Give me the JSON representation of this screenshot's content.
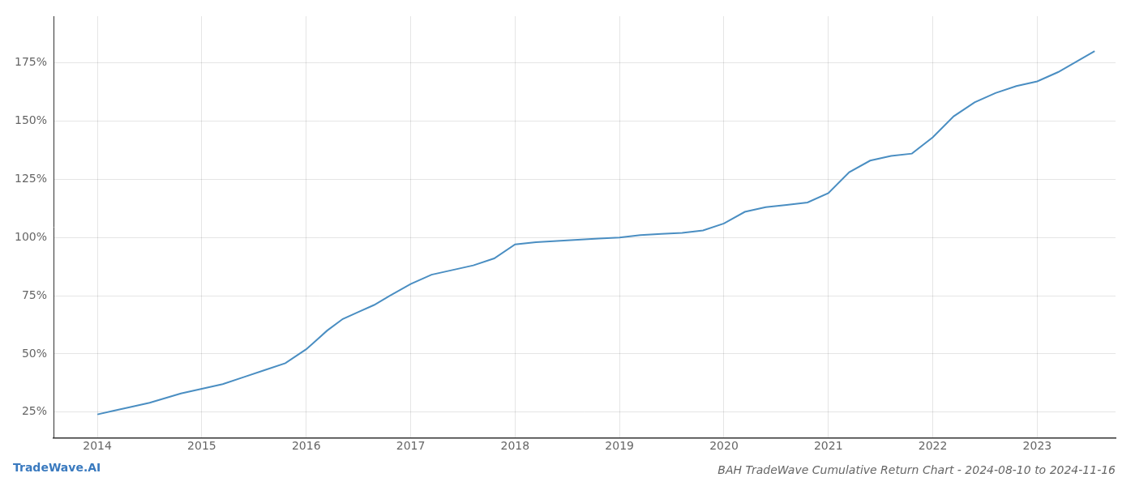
{
  "chart_data": {
    "type": "line",
    "title": "BAH TradeWave Cumulative Return Chart - 2024-08-10 to 2024-11-16",
    "annotations": [
      "TradeWave.AI"
    ],
    "x": [
      2014.0,
      2014.15,
      2014.3,
      2014.5,
      2014.65,
      2014.8,
      2015.0,
      2015.2,
      2015.4,
      2015.6,
      2015.8,
      2016.0,
      2016.1,
      2016.2,
      2016.35,
      2016.5,
      2016.65,
      2016.8,
      2017.0,
      2017.2,
      2017.4,
      2017.6,
      2017.8,
      2018.0,
      2018.2,
      2018.4,
      2018.6,
      2018.8,
      2019.0,
      2019.2,
      2019.4,
      2019.6,
      2019.8,
      2020.0,
      2020.2,
      2020.4,
      2020.6,
      2020.8,
      2021.0,
      2021.2,
      2021.4,
      2021.6,
      2021.8,
      2022.0,
      2022.2,
      2022.4,
      2022.6,
      2022.8,
      2023.0,
      2023.2,
      2023.55
    ],
    "values": [
      24,
      25.5,
      27,
      29,
      31,
      33,
      35,
      37,
      40,
      43,
      46,
      52,
      56,
      60,
      65,
      68,
      71,
      75,
      80,
      84,
      86,
      88,
      91,
      97,
      98,
      98.5,
      99,
      99.5,
      100,
      101,
      101.5,
      102,
      103,
      106,
      111,
      113,
      114,
      115,
      119,
      128,
      133,
      135,
      136,
      143,
      152,
      158,
      162,
      165,
      167,
      171,
      180
    ],
    "color": "#4a8ec2",
    "xlim": [
      2013.58,
      2023.75
    ],
    "xticks": [
      2014,
      2015,
      2016,
      2017,
      2018,
      2019,
      2020,
      2021,
      2022,
      2023
    ],
    "ylim": [
      14,
      195
    ],
    "yticks": [
      {
        "value": 25,
        "label": "25%"
      },
      {
        "value": 50,
        "label": "50%"
      },
      {
        "value": 75,
        "label": "75%"
      },
      {
        "value": 100,
        "label": "100%"
      },
      {
        "value": 125,
        "label": "125%"
      },
      {
        "value": 150,
        "label": "150%"
      },
      {
        "value": 175,
        "label": "175%"
      }
    ],
    "grid": true
  }
}
